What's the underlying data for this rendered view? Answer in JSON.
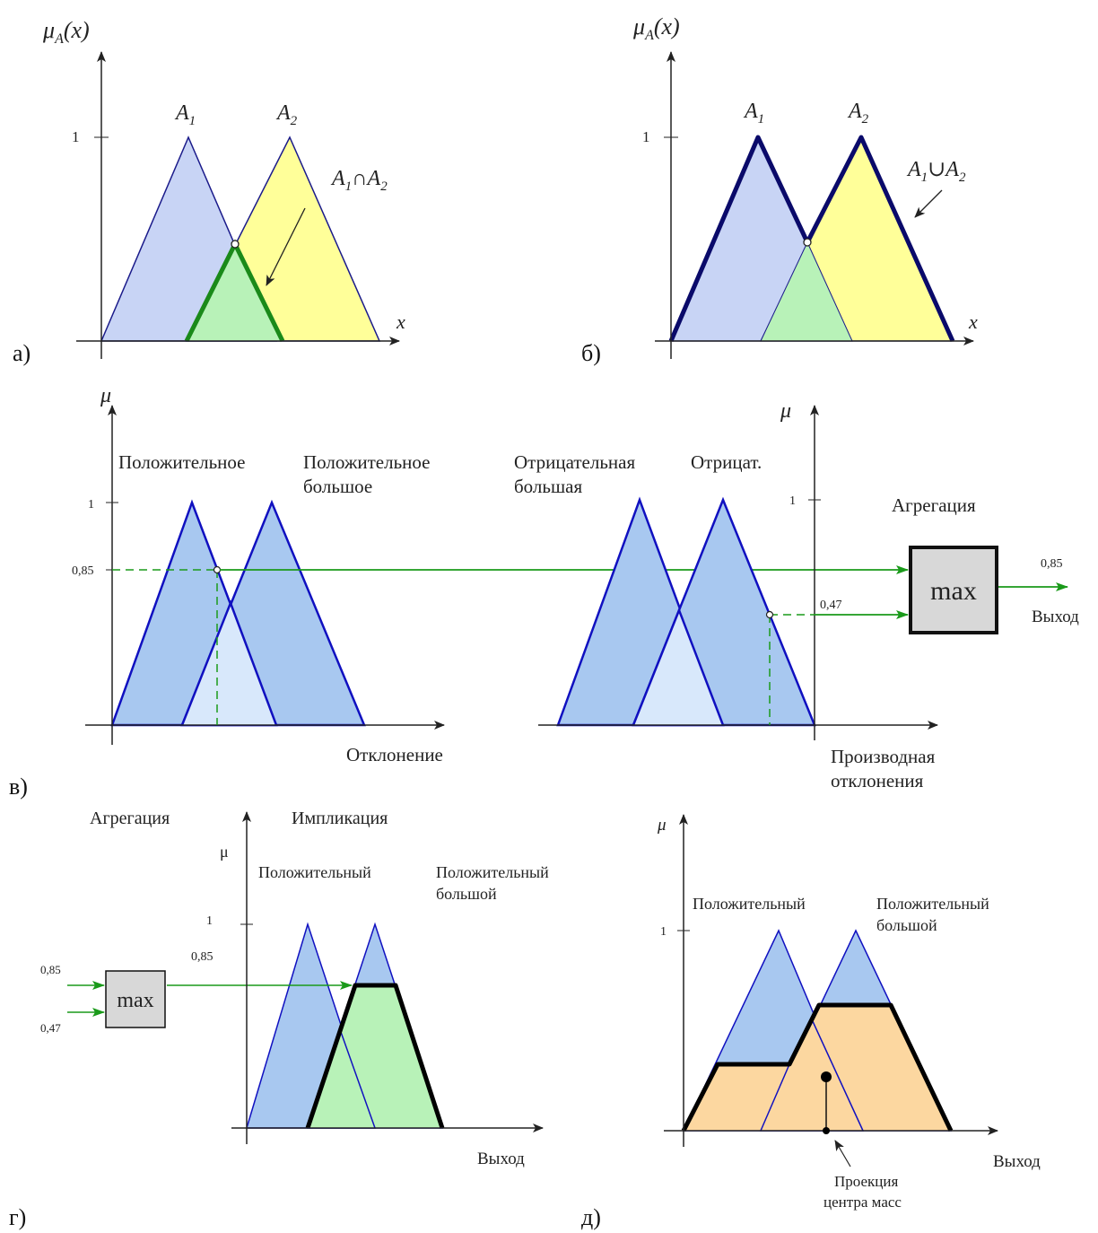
{
  "colors": {
    "blue_fill": "#c8d4f5",
    "blue_line": "#1010c0",
    "blue_fill_b": "#a8c8f0",
    "blue_fill_light": "#d8e8fb",
    "yellow_fill": "#ffff99",
    "green_fill": "#b8f2b8",
    "green_line": "#1a8a1a",
    "arrow_green": "#1a9a1a",
    "dark_navy": "#0a0a6a",
    "orange_fill": "#fcd7a0",
    "box_fill": "#d8d8d8"
  },
  "panel_a": {
    "label": "а)",
    "y_axis": "μ",
    "y_axis_sub": "A",
    "y_axis_arg": "(x)",
    "x_axis": "x",
    "tick_one": "1",
    "set1": "A",
    "set1_sub": "1",
    "set2": "A",
    "set2_sub": "2",
    "op_left": "A",
    "op_left_sub": "1",
    "op_symbol": "∩",
    "op_right": "A",
    "op_right_sub": "2"
  },
  "panel_b": {
    "label": "б)",
    "y_axis": "μ",
    "y_axis_sub": "A",
    "y_axis_arg": "(x)",
    "x_axis": "x",
    "tick_one": "1",
    "set1": "A",
    "set1_sub": "1",
    "set2": "A",
    "set2_sub": "2",
    "op_left": "A",
    "op_left_sub": "1",
    "op_symbol": "∪",
    "op_right": "A",
    "op_right_sub": "2"
  },
  "panel_v": {
    "label": "в)",
    "left": {
      "y_axis": "μ",
      "tick_one": "1",
      "tick_085": "0,85",
      "term1": "Положительное",
      "term2_line1": "Положительное",
      "term2_line2": "большое",
      "x_axis": "Отклонение"
    },
    "right": {
      "y_axis": "μ",
      "tick_one": "1",
      "term1_line1": "Отрицательная",
      "term1_line2": "большая",
      "term2": "Отрицат.",
      "value_047": "0,47",
      "x_axis_line1": "Производная",
      "x_axis_line2": "отклонения"
    },
    "aggregation": {
      "title": "Агрегация",
      "box": "max",
      "output_value": "0,85",
      "output_label": "Выход"
    }
  },
  "panel_g": {
    "label": "г)",
    "aggregation_title": "Агрегация",
    "implication_title": "Импликация",
    "in1": "0,85",
    "in2": "0,47",
    "box": "max",
    "y_axis": "μ",
    "tick_one": "1",
    "tick_085": "0,85",
    "term1": "Положительный",
    "term2_line1": "Положительный",
    "term2_line2": "большой",
    "x_axis": "Выход"
  },
  "panel_d": {
    "label": "д)",
    "y_axis": "μ",
    "tick_one": "1",
    "term1": "Положительный",
    "term2_line1": "Положительный",
    "term2_line2": "большой",
    "x_axis": "Выход",
    "projection_line1": "Проекция",
    "projection_line2": "центра масс"
  }
}
